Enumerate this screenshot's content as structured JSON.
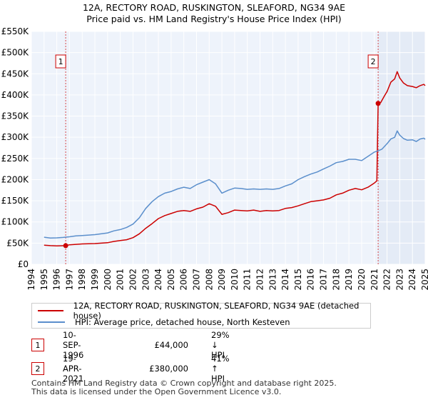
{
  "chart_data": {
    "type": "line",
    "title": "12A, RECTORY ROAD, RUSKINGTON, SLEAFORD, NG34 9AE",
    "subtitle": "Price paid vs. HM Land Registry's House Price Index (HPI)",
    "xlabel": "",
    "ylabel": "",
    "xlim": [
      1994,
      2025
    ],
    "ylim": [
      0,
      550000
    ],
    "grid": true,
    "x_ticks": [
      "1994",
      "1995",
      "1996",
      "1997",
      "1998",
      "1999",
      "2000",
      "2001",
      "2002",
      "2003",
      "2004",
      "2005",
      "2006",
      "2007",
      "2008",
      "2009",
      "2010",
      "2011",
      "2012",
      "2013",
      "2014",
      "2015",
      "2016",
      "2017",
      "2018",
      "2019",
      "2020",
      "2021",
      "2022",
      "2023",
      "2024",
      "2025"
    ],
    "y_ticks": [
      {
        "value": 0,
        "label": "£0"
      },
      {
        "value": 50000,
        "label": "£50K"
      },
      {
        "value": 100000,
        "label": "£100K"
      },
      {
        "value": 150000,
        "label": "£150K"
      },
      {
        "value": 200000,
        "label": "£200K"
      },
      {
        "value": 250000,
        "label": "£250K"
      },
      {
        "value": 300000,
        "label": "£300K"
      },
      {
        "value": 350000,
        "label": "£350K"
      },
      {
        "value": 400000,
        "label": "£400K"
      },
      {
        "value": 450000,
        "label": "£450K"
      },
      {
        "value": 500000,
        "label": "£500K"
      },
      {
        "value": 550000,
        "label": "£550K"
      }
    ],
    "series": [
      {
        "name": "12A, RECTORY ROAD, RUSKINGTON, SLEAFORD, NG34 9AE (detached house)",
        "color": "#cc0000",
        "x": [
          1995.0,
          1995.5,
          1996.0,
          1996.5,
          1996.7,
          1997.0,
          1997.5,
          1998.0,
          1999.0,
          2000.0,
          2000.5,
          2001.0,
          2001.5,
          2002.0,
          2002.5,
          2003.0,
          2003.5,
          2004.0,
          2004.5,
          2005.0,
          2005.5,
          2006.0,
          2006.5,
          2007.0,
          2007.5,
          2008.0,
          2008.5,
          2009.0,
          2009.5,
          2010.0,
          2010.5,
          2011.0,
          2011.5,
          2012.0,
          2012.5,
          2013.0,
          2013.5,
          2014.0,
          2014.5,
          2015.0,
          2015.5,
          2016.0,
          2016.5,
          2017.0,
          2017.5,
          2018.0,
          2018.5,
          2019.0,
          2019.5,
          2020.0,
          2020.5,
          2021.0,
          2021.2,
          2021.3,
          2021.5,
          2021.8,
          2022.0,
          2022.3,
          2022.6,
          2022.8,
          2023.0,
          2023.3,
          2023.6,
          2024.0,
          2024.3,
          2024.6,
          2024.9,
          2025.0
        ],
        "y": [
          45000,
          44000,
          43500,
          43800,
          44000,
          46000,
          47000,
          48000,
          49000,
          51000,
          54000,
          56000,
          58000,
          63000,
          72000,
          85000,
          96000,
          108000,
          115000,
          120000,
          125000,
          127000,
          125000,
          131000,
          135000,
          143000,
          137000,
          118000,
          122000,
          128000,
          127000,
          126000,
          128000,
          125000,
          127000,
          126000,
          127000,
          132000,
          134000,
          138000,
          143000,
          148000,
          150000,
          152000,
          156000,
          164000,
          168000,
          175000,
          179000,
          176000,
          182000,
          192000,
          197000,
          380000,
          382000,
          398000,
          408000,
          430000,
          438000,
          455000,
          440000,
          428000,
          422000,
          420000,
          417000,
          422000,
          425000,
          422000
        ]
      },
      {
        "name": "HPI: Average price, detached house, North Kesteven",
        "color": "#5b8fcc",
        "x": [
          1995.0,
          1995.5,
          1996.0,
          1996.5,
          1997.0,
          1997.5,
          1998.0,
          1999.0,
          2000.0,
          2000.5,
          2001.0,
          2001.5,
          2002.0,
          2002.5,
          2003.0,
          2003.5,
          2004.0,
          2004.5,
          2005.0,
          2005.5,
          2006.0,
          2006.5,
          2007.0,
          2007.5,
          2008.0,
          2008.5,
          2009.0,
          2009.5,
          2010.0,
          2010.5,
          2011.0,
          2011.5,
          2012.0,
          2012.5,
          2013.0,
          2013.5,
          2014.0,
          2014.5,
          2015.0,
          2015.5,
          2016.0,
          2016.5,
          2017.0,
          2017.5,
          2018.0,
          2018.5,
          2019.0,
          2019.5,
          2020.0,
          2020.5,
          2021.0,
          2021.3,
          2021.6,
          2022.0,
          2022.3,
          2022.6,
          2022.8,
          2023.0,
          2023.3,
          2023.6,
          2024.0,
          2024.3,
          2024.6,
          2024.9,
          2025.0
        ],
        "y": [
          64000,
          62000,
          62500,
          63500,
          65000,
          67000,
          68000,
          70000,
          74000,
          79000,
          82000,
          87000,
          95000,
          110000,
          132000,
          148000,
          160000,
          168000,
          172000,
          178000,
          182000,
          179000,
          188000,
          194000,
          200000,
          190000,
          168000,
          175000,
          180000,
          179000,
          177000,
          178000,
          177000,
          178000,
          177000,
          179000,
          185000,
          190000,
          200000,
          207000,
          213000,
          218000,
          225000,
          232000,
          240000,
          243000,
          248000,
          248000,
          245000,
          255000,
          265000,
          268000,
          272000,
          285000,
          296000,
          300000,
          315000,
          305000,
          297000,
          293000,
          294000,
          290000,
          296000,
          298000,
          295000
        ]
      }
    ],
    "sales": [
      {
        "id": "1",
        "year": 1996.7,
        "price": 44000,
        "date": "10-SEP-1996",
        "price_label": "£44,000",
        "hpi_diff": "29% ↓ HPI"
      },
      {
        "id": "2",
        "year": 2021.3,
        "price": 380000,
        "date": "19-APR-2021",
        "price_label": "£380,000",
        "hpi_diff": "41% ↑ HPI"
      }
    ]
  },
  "legend": {
    "property_label": "12A, RECTORY ROAD, RUSKINGTON, SLEAFORD, NG34 9AE (detached house)",
    "hpi_label": "HPI: Average price, detached house, North Kesteven"
  },
  "footer": {
    "line1": "Contains HM Land Registry data © Crown copyright and database right 2025.",
    "line2": "This data is licensed under the Open Government Licence v3.0."
  },
  "colors": {
    "property": "#cc0000",
    "hpi": "#5b8fcc",
    "plot_bg": "#eef3fb",
    "grid": "#ffffff",
    "shade": "#dde6f4"
  }
}
